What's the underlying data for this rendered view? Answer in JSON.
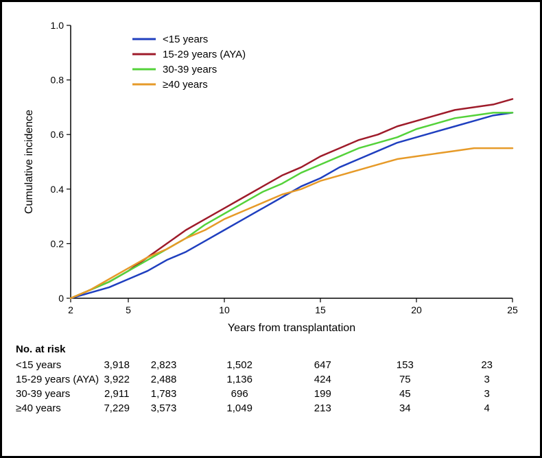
{
  "chart": {
    "type": "line",
    "ylabel": "Cumulative incidence",
    "xlabel": "Years from transplantation",
    "ylabel_fontsize": 18,
    "xlabel_fontsize": 18,
    "tick_fontsize": 14,
    "legend_fontsize": 15,
    "background_color": "#ffffff",
    "axis_color": "#000000",
    "xlim": [
      2,
      25
    ],
    "xticks": [
      2,
      5,
      10,
      15,
      20,
      25
    ],
    "ylim": [
      0,
      1.0
    ],
    "yticks": [
      0,
      0.2,
      0.4,
      0.6,
      0.8,
      1.0
    ],
    "ytick_labels": [
      "0",
      "0.2",
      "0.4",
      "0.6",
      "0.8",
      "1.0"
    ],
    "line_width": 2.5,
    "series": [
      {
        "id": "lt15",
        "label": "<15 years",
        "color": "#1f3fbf",
        "points": [
          [
            2,
            0.0
          ],
          [
            3,
            0.02
          ],
          [
            4,
            0.04
          ],
          [
            5,
            0.07
          ],
          [
            6,
            0.1
          ],
          [
            7,
            0.14
          ],
          [
            8,
            0.17
          ],
          [
            9,
            0.21
          ],
          [
            10,
            0.25
          ],
          [
            11,
            0.29
          ],
          [
            12,
            0.33
          ],
          [
            13,
            0.37
          ],
          [
            14,
            0.41
          ],
          [
            15,
            0.44
          ],
          [
            16,
            0.48
          ],
          [
            17,
            0.51
          ],
          [
            18,
            0.54
          ],
          [
            19,
            0.57
          ],
          [
            20,
            0.59
          ],
          [
            21,
            0.61
          ],
          [
            22,
            0.63
          ],
          [
            23,
            0.65
          ],
          [
            24,
            0.67
          ],
          [
            25,
            0.68
          ]
        ]
      },
      {
        "id": "aya",
        "label": "15-29 years (AYA)",
        "color": "#9e1b2a",
        "points": [
          [
            2,
            0.0
          ],
          [
            3,
            0.03
          ],
          [
            4,
            0.06
          ],
          [
            5,
            0.1
          ],
          [
            6,
            0.15
          ],
          [
            7,
            0.2
          ],
          [
            8,
            0.25
          ],
          [
            9,
            0.29
          ],
          [
            10,
            0.33
          ],
          [
            11,
            0.37
          ],
          [
            12,
            0.41
          ],
          [
            13,
            0.45
          ],
          [
            14,
            0.48
          ],
          [
            15,
            0.52
          ],
          [
            16,
            0.55
          ],
          [
            17,
            0.58
          ],
          [
            18,
            0.6
          ],
          [
            19,
            0.63
          ],
          [
            20,
            0.65
          ],
          [
            21,
            0.67
          ],
          [
            22,
            0.69
          ],
          [
            23,
            0.7
          ],
          [
            24,
            0.71
          ],
          [
            25,
            0.73
          ]
        ]
      },
      {
        "id": "g3039",
        "label": "30-39 years",
        "color": "#54d23a",
        "points": [
          [
            2,
            0.0
          ],
          [
            3,
            0.03
          ],
          [
            4,
            0.06
          ],
          [
            5,
            0.1
          ],
          [
            6,
            0.14
          ],
          [
            7,
            0.18
          ],
          [
            8,
            0.22
          ],
          [
            9,
            0.27
          ],
          [
            10,
            0.31
          ],
          [
            11,
            0.35
          ],
          [
            12,
            0.39
          ],
          [
            13,
            0.42
          ],
          [
            14,
            0.46
          ],
          [
            15,
            0.49
          ],
          [
            16,
            0.52
          ],
          [
            17,
            0.55
          ],
          [
            18,
            0.57
          ],
          [
            19,
            0.59
          ],
          [
            20,
            0.62
          ],
          [
            21,
            0.64
          ],
          [
            22,
            0.66
          ],
          [
            23,
            0.67
          ],
          [
            24,
            0.68
          ],
          [
            25,
            0.68
          ]
        ]
      },
      {
        "id": "ge40",
        "label": "≥40 years",
        "color": "#e69a28",
        "points": [
          [
            2,
            0.0
          ],
          [
            3,
            0.03
          ],
          [
            4,
            0.07
          ],
          [
            5,
            0.11
          ],
          [
            6,
            0.15
          ],
          [
            7,
            0.18
          ],
          [
            8,
            0.22
          ],
          [
            9,
            0.25
          ],
          [
            10,
            0.29
          ],
          [
            11,
            0.32
          ],
          [
            12,
            0.35
          ],
          [
            13,
            0.38
          ],
          [
            14,
            0.4
          ],
          [
            15,
            0.43
          ],
          [
            16,
            0.45
          ],
          [
            17,
            0.47
          ],
          [
            18,
            0.49
          ],
          [
            19,
            0.51
          ],
          [
            20,
            0.52
          ],
          [
            21,
            0.53
          ],
          [
            22,
            0.54
          ],
          [
            23,
            0.55
          ],
          [
            24,
            0.55
          ],
          [
            25,
            0.55
          ]
        ]
      }
    ],
    "legend_position": "top-left"
  },
  "no_at_risk": {
    "title": "No. at risk",
    "x_positions": [
      2,
      5,
      10,
      15,
      20,
      25
    ],
    "rows": [
      {
        "label": "<15 years",
        "values": [
          "3,918",
          "2,823",
          "1,502",
          "647",
          "153",
          "23"
        ]
      },
      {
        "label": "15-29 years (AYA)",
        "values": [
          "3,922",
          "2,488",
          "1,136",
          "424",
          "75",
          "3"
        ]
      },
      {
        "label": "30-39 years",
        "values": [
          "2,911",
          "1,783",
          "696",
          "199",
          "45",
          "3"
        ]
      },
      {
        "label": "≥40 years",
        "values": [
          "7,229",
          "3,573",
          "1,049",
          "213",
          "34",
          "4"
        ]
      }
    ]
  }
}
